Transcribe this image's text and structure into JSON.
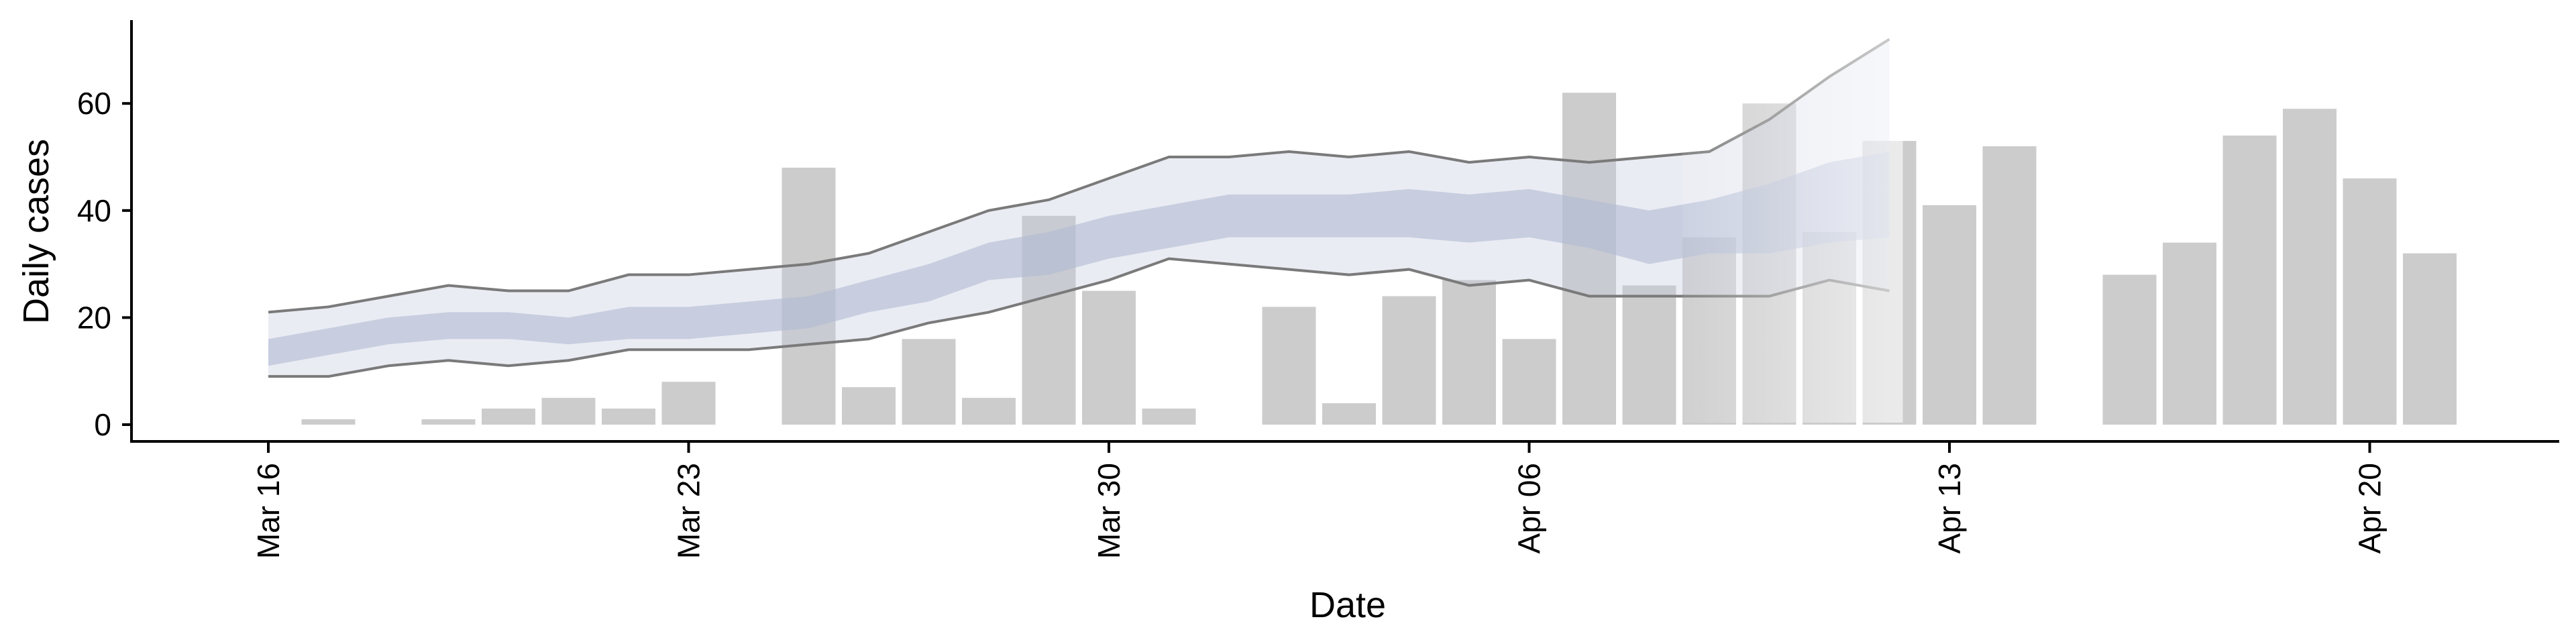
{
  "chart_data": {
    "type": "bar",
    "title": "",
    "xlabel": "Date",
    "ylabel": "Daily cases",
    "x_start": "Mar 16",
    "x_tick_labels": [
      "Mar 16",
      "Mar 23",
      "Mar 30",
      "Apr 06",
      "Apr 13",
      "Apr 20"
    ],
    "y_tick_labels": [
      "0",
      "20",
      "40",
      "60"
    ],
    "ylim": [
      -3.5,
      76
    ],
    "grid": false,
    "legend": "none",
    "colors": {
      "bars": "#cccccc",
      "band_outer": "#c2c8dc",
      "band_inner": "#b0bad3",
      "interval_lines": "#7a7a7a"
    },
    "bars": {
      "dates": [
        "Mar 17",
        "Mar 19",
        "Mar 20",
        "Mar 21",
        "Mar 22",
        "Mar 23",
        "Mar 25",
        "Mar 26",
        "Mar 27",
        "Mar 28",
        "Mar 29",
        "Mar 30",
        "Mar 31",
        "Apr 02",
        "Apr 03",
        "Apr 04",
        "Apr 05",
        "Apr 06",
        "Apr 07",
        "Apr 08",
        "Apr 09",
        "Apr 10",
        "Apr 11",
        "Apr 12",
        "Apr 13",
        "Apr 14",
        "Apr 16",
        "Apr 17",
        "Apr 18",
        "Apr 19",
        "Apr 20",
        "Apr 21"
      ],
      "values": [
        1,
        1,
        3,
        5,
        3,
        8,
        48,
        7,
        16,
        5,
        39,
        25,
        3,
        22,
        4,
        24,
        27,
        16,
        62,
        26,
        35,
        60,
        36,
        53,
        41,
        52,
        28,
        34,
        54,
        59,
        46,
        32
      ]
    },
    "band": {
      "dates": [
        "Mar 16",
        "Mar 17",
        "Mar 18",
        "Mar 19",
        "Mar 20",
        "Mar 21",
        "Mar 22",
        "Mar 23",
        "Mar 24",
        "Mar 25",
        "Mar 26",
        "Mar 27",
        "Mar 28",
        "Mar 29",
        "Mar 30",
        "Mar 31",
        "Apr 01",
        "Apr 02",
        "Apr 03",
        "Apr 04",
        "Apr 05",
        "Apr 06",
        "Apr 07",
        "Apr 08",
        "Apr 09",
        "Apr 10",
        "Apr 11",
        "Apr 12"
      ],
      "outer_upper": [
        21,
        22,
        24,
        26,
        25,
        25,
        28,
        28,
        29,
        30,
        32,
        36,
        40,
        42,
        46,
        50,
        50,
        51,
        50,
        51,
        49,
        50,
        49,
        50,
        51,
        57,
        65,
        72
      ],
      "outer_lower": [
        9,
        9,
        11,
        12,
        11,
        12,
        14,
        14,
        14,
        15,
        16,
        19,
        21,
        24,
        27,
        31,
        30,
        29,
        28,
        29,
        26,
        27,
        24,
        24,
        24,
        24,
        27,
        25
      ],
      "inner_upper": [
        16,
        18,
        20,
        21,
        21,
        20,
        22,
        22,
        23,
        24,
        27,
        30,
        34,
        36,
        39,
        41,
        43,
        43,
        43,
        44,
        43,
        44,
        42,
        40,
        42,
        45,
        49,
        51
      ],
      "inner_lower": [
        11,
        13,
        15,
        16,
        16,
        15,
        16,
        16,
        17,
        18,
        21,
        23,
        27,
        28,
        31,
        33,
        35,
        35,
        35,
        35,
        34,
        35,
        33,
        30,
        32,
        32,
        34,
        35
      ],
      "fade_from": "Apr 09"
    }
  }
}
